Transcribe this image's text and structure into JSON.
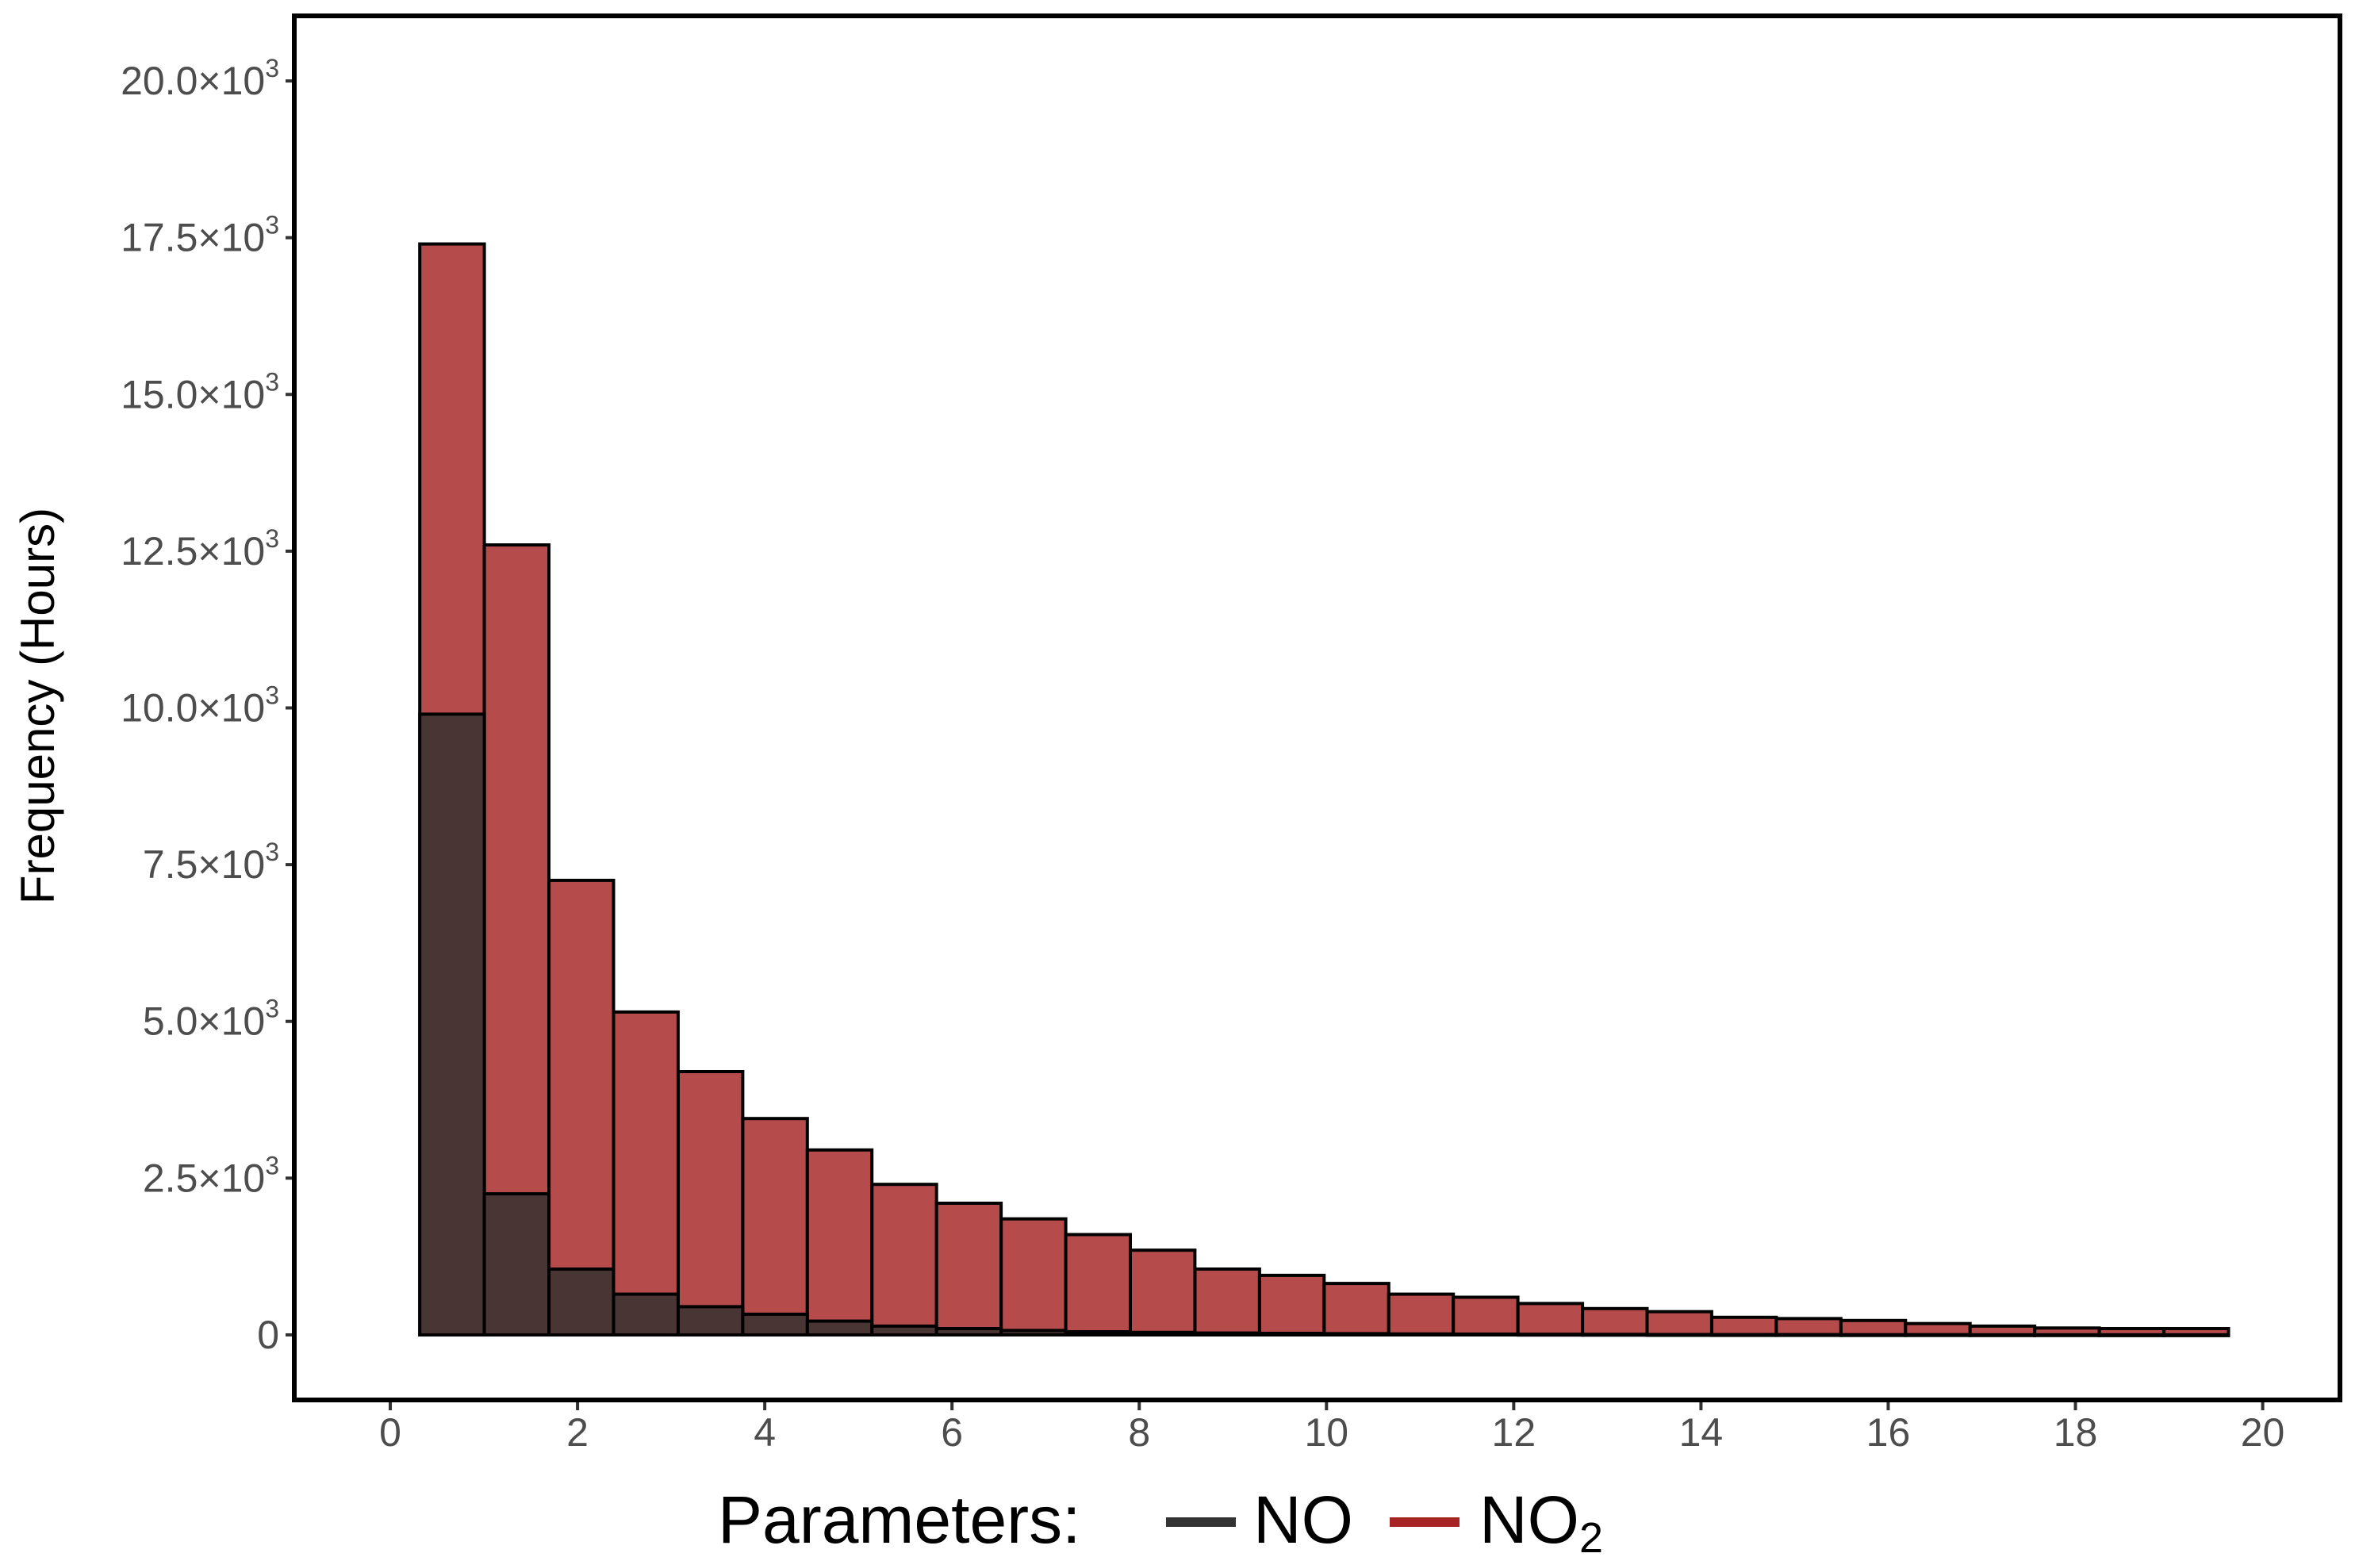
{
  "chart_data": {
    "type": "bar",
    "title": "",
    "xlabel": "",
    "ylabel": "Frequency (Hours)",
    "xlim": [
      -1,
      20.8
    ],
    "ylim": [
      -1000,
      21000
    ],
    "x_ticks": [
      0,
      2,
      4,
      6,
      8,
      10,
      12,
      14,
      16,
      18,
      20
    ],
    "y_ticks": [
      {
        "value": 0,
        "label": "0",
        "mantissa": "",
        "exponent": ""
      },
      {
        "value": 2500,
        "label": "2.5×10^3",
        "mantissa": "2.5×10",
        "exponent": "3"
      },
      {
        "value": 5000,
        "label": "5.0×10^3",
        "mantissa": "5.0×10",
        "exponent": "3"
      },
      {
        "value": 7500,
        "label": "7.5×10^3",
        "mantissa": "7.5×10",
        "exponent": "3"
      },
      {
        "value": 10000,
        "label": "10.0×10^3",
        "mantissa": "10.0×10",
        "exponent": "3"
      },
      {
        "value": 12500,
        "label": "12.5×10^3",
        "mantissa": "12.5×10",
        "exponent": "3"
      },
      {
        "value": 15000,
        "label": "15.0×10^3",
        "mantissa": "15.0×10",
        "exponent": "3"
      },
      {
        "value": 17500,
        "label": "17.5×10^3",
        "mantissa": "17.5×10",
        "exponent": "3"
      },
      {
        "value": 20000,
        "label": "20.0×10^3",
        "mantissa": "20.0×10",
        "exponent": "3"
      }
    ],
    "bin_width": 0.69,
    "bin_centers": [
      0.66,
      1.35,
      2.04,
      2.73,
      3.42,
      4.11,
      4.8,
      5.49,
      6.18,
      6.87,
      7.56,
      8.25,
      8.94,
      9.63,
      10.32,
      11.01,
      11.7,
      12.39,
      13.08,
      13.77,
      14.46,
      15.15,
      15.84,
      16.53,
      17.22,
      17.91,
      18.6,
      19.29
    ],
    "series": [
      {
        "name": "NO2",
        "color": "#b54b4b",
        "values": [
          17400,
          12600,
          7250,
          5150,
          4200,
          3450,
          2950,
          2400,
          2100,
          1850,
          1600,
          1350,
          1050,
          950,
          820,
          650,
          600,
          500,
          420,
          370,
          280,
          260,
          230,
          180,
          140,
          110,
          100,
          100
        ]
      },
      {
        "name": "NO",
        "color": "#4a3535",
        "values": [
          9900,
          2250,
          1050,
          650,
          450,
          330,
          220,
          140,
          100,
          70,
          50,
          40,
          30,
          25,
          20,
          15,
          12,
          10,
          8,
          6,
          5,
          4,
          3,
          3,
          2,
          2,
          1,
          1
        ]
      }
    ],
    "legend": {
      "position": "bottom",
      "title": "Parameters:",
      "items": [
        {
          "label": "NO",
          "subscript": "",
          "color": "#333333"
        },
        {
          "label": "NO",
          "subscript": "2",
          "color": "#a82424"
        }
      ]
    }
  }
}
